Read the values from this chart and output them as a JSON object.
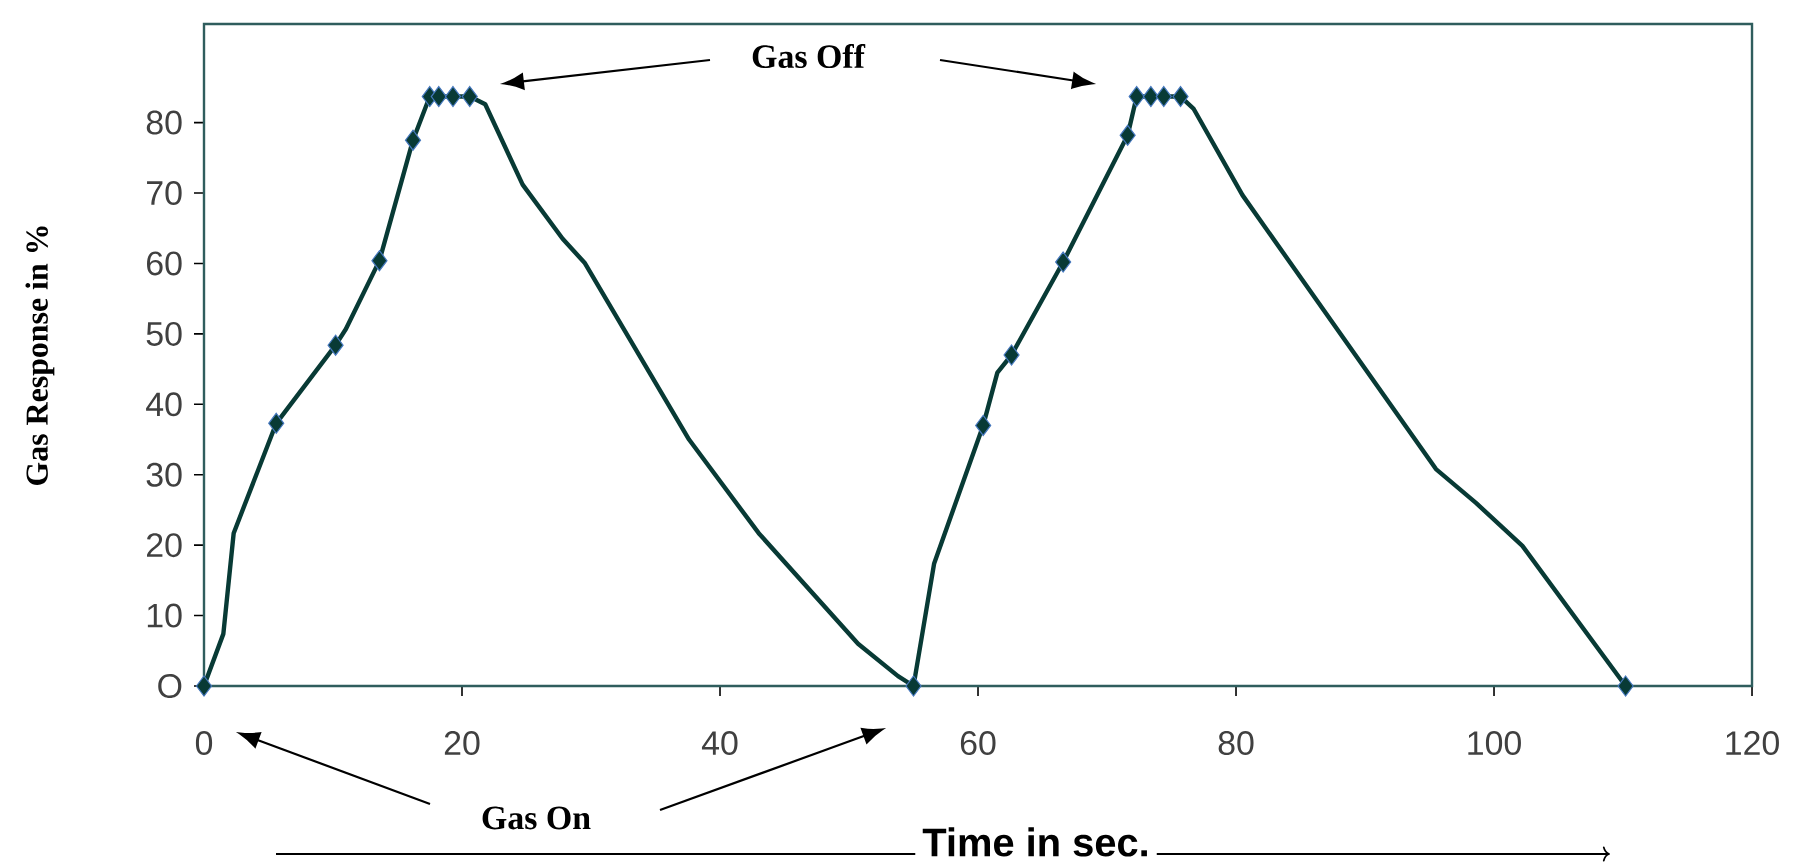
{
  "chart_data": {
    "type": "line",
    "ylabel": "Gas Response in %",
    "xlabel": "Time in sec.",
    "xlim": [
      0,
      120
    ],
    "ylim": [
      0,
      94
    ],
    "xticks": [
      0,
      20,
      40,
      60,
      80,
      100,
      120
    ],
    "yticks": [
      {
        "value": 0,
        "label": "O"
      },
      10,
      20,
      30,
      40,
      50,
      60,
      70,
      80
    ],
    "line_style": "solid",
    "annotations": [
      "Gas Off",
      "Gas On"
    ],
    "series": [
      {
        "color": "#083a35",
        "x": [
          0,
          1.5,
          2.3,
          5.6,
          10.2,
          11,
          13.6,
          16.2,
          17.5,
          18.2,
          19.3,
          20.6,
          21.8,
          24.7,
          27.8,
          29.5,
          37.6,
          43,
          50.7,
          53.8,
          55,
          56.6,
          60.4,
          61.5,
          62.6,
          66.6,
          71.6,
          72.3,
          73.4,
          74.4,
          75.7,
          76.7,
          80.5,
          95.5,
          98.6,
          102.2,
          110.2
        ],
        "values": [
          0,
          7.4,
          21.7,
          37.3,
          48.4,
          50.7,
          60.4,
          77.5,
          83.7,
          83.7,
          83.7,
          83.7,
          82.6,
          71.2,
          63.5,
          60.1,
          35,
          21.7,
          6,
          1.4,
          0,
          17.4,
          37,
          44.5,
          47,
          60.2,
          78.2,
          83.7,
          83.7,
          83.7,
          83.7,
          82,
          69.7,
          30.8,
          26,
          19.9,
          0
        ]
      },
      {
        "type": "scatter",
        "marker": "diamond",
        "color": "#083a35",
        "x": [
          0,
          5.6,
          10.2,
          13.6,
          16.2,
          17.5,
          18.2,
          19.3,
          20.6,
          55,
          60.4,
          62.6,
          66.6,
          71.6,
          72.3,
          73.4,
          74.4,
          75.7,
          110.2
        ],
        "values": [
          0,
          37.3,
          48.4,
          60.4,
          77.5,
          83.7,
          83.7,
          83.7,
          83.7,
          0,
          37,
          47,
          60.2,
          78.2,
          83.7,
          83.7,
          83.7,
          83.7,
          0
        ]
      }
    ]
  }
}
